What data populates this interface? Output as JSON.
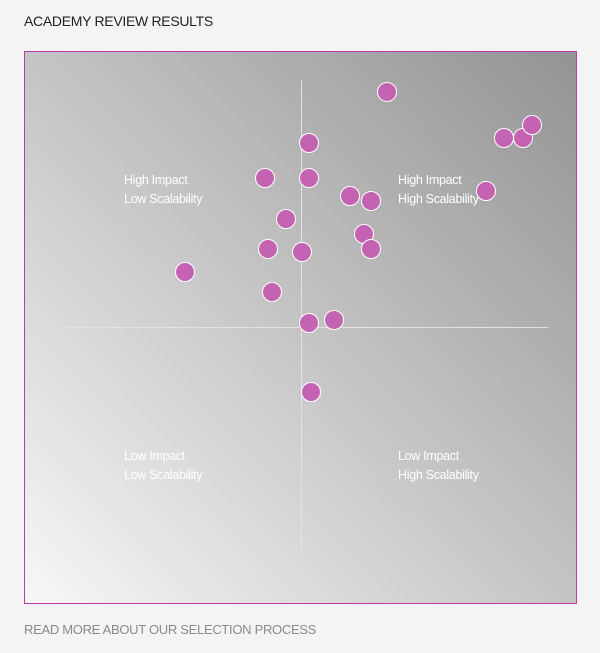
{
  "page": {
    "title": "ACADEMY REVIEW RESULTS",
    "footer_link": "READ MORE ABOUT OUR SELECTION PROCESS"
  },
  "colors": {
    "point_fill": "#c363b1",
    "frame_border": "#c03aa6",
    "label_text": "#ffffff"
  },
  "chart_data": {
    "type": "scatter",
    "title": "",
    "xlabel": "",
    "ylabel": "",
    "xlim": [
      -1,
      1
    ],
    "ylim": [
      -1,
      1
    ],
    "grid": false,
    "quadrant_labels": {
      "top_left": [
        "High Impact",
        "Low Scalability"
      ],
      "top_right": [
        "High Impact",
        "High Scalability"
      ],
      "bottom_left": [
        "Low Impact",
        "Low Scalability"
      ],
      "bottom_right": [
        "Low Impact",
        "High Scalability"
      ]
    },
    "points": [
      {
        "x": 0.37,
        "y": 0.93
      },
      {
        "x": 0.88,
        "y": 0.75
      },
      {
        "x": 0.96,
        "y": 0.75
      },
      {
        "x": 1.0,
        "y": 0.8
      },
      {
        "x": 0.03,
        "y": 0.73
      },
      {
        "x": -0.16,
        "y": 0.59
      },
      {
        "x": 0.03,
        "y": 0.59
      },
      {
        "x": 0.8,
        "y": 0.54
      },
      {
        "x": 0.21,
        "y": 0.52
      },
      {
        "x": 0.3,
        "y": 0.5
      },
      {
        "x": -0.07,
        "y": 0.43
      },
      {
        "x": 0.27,
        "y": 0.37
      },
      {
        "x": -0.15,
        "y": 0.31
      },
      {
        "x": 0.0,
        "y": 0.3
      },
      {
        "x": 0.3,
        "y": 0.31
      },
      {
        "x": -0.51,
        "y": 0.22
      },
      {
        "x": -0.13,
        "y": 0.14
      },
      {
        "x": 0.03,
        "y": 0.02
      },
      {
        "x": 0.14,
        "y": 0.03
      },
      {
        "x": 0.04,
        "y": -0.25
      }
    ]
  }
}
